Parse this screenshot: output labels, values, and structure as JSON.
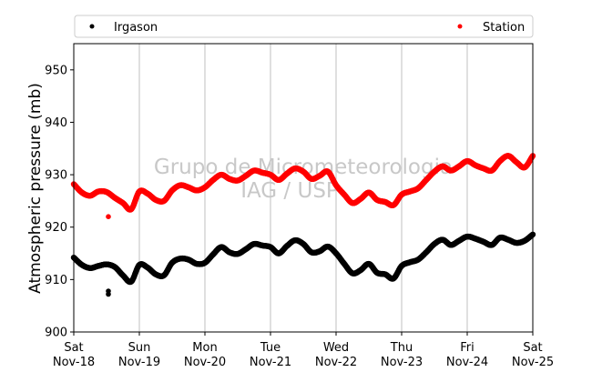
{
  "chart_data": {
    "type": "scatter",
    "ylabel": "Atmospheric pressure (mb)",
    "xlabel": "",
    "ylim": [
      900,
      955
    ],
    "yticks": [
      900,
      910,
      920,
      930,
      940,
      950
    ],
    "xlim": [
      "2017-11-18 00:00",
      "2017-11-25 00:00"
    ],
    "xticks": [
      {
        "day": "Sat",
        "date": "Nov-18"
      },
      {
        "day": "Sun",
        "date": "Nov-19"
      },
      {
        "day": "Mon",
        "date": "Nov-20"
      },
      {
        "day": "Tue",
        "date": "Nov-21"
      },
      {
        "day": "Wed",
        "date": "Nov-22"
      },
      {
        "day": "Thu",
        "date": "Nov-23"
      },
      {
        "day": "Fri",
        "date": "Nov-24"
      },
      {
        "day": "Sat",
        "date": "Nov-25"
      }
    ],
    "grid": "vertical",
    "legend": {
      "placement": "top",
      "entries": [
        "Irgason",
        "Station"
      ]
    },
    "watermark": [
      "Grupo de Micrometeorologia",
      "IAG / USP"
    ],
    "series": [
      {
        "name": "Irgason",
        "color": "#000000",
        "x": [
          "2017-11-18 00:00",
          "2017-11-18 03:00",
          "2017-11-18 06:00",
          "2017-11-18 09:00",
          "2017-11-18 12:00",
          "2017-11-18 15:00",
          "2017-11-18 18:00",
          "2017-11-18 21:00",
          "2017-11-19 00:00",
          "2017-11-19 03:00",
          "2017-11-19 06:00",
          "2017-11-19 09:00",
          "2017-11-19 12:00",
          "2017-11-19 15:00",
          "2017-11-19 18:00",
          "2017-11-19 21:00",
          "2017-11-20 00:00",
          "2017-11-20 03:00",
          "2017-11-20 06:00",
          "2017-11-20 09:00",
          "2017-11-20 12:00",
          "2017-11-20 15:00",
          "2017-11-20 18:00",
          "2017-11-20 21:00",
          "2017-11-21 00:00",
          "2017-11-21 03:00",
          "2017-11-21 06:00",
          "2017-11-21 09:00",
          "2017-11-21 12:00",
          "2017-11-21 15:00",
          "2017-11-21 18:00",
          "2017-11-21 21:00",
          "2017-11-22 00:00",
          "2017-11-22 03:00",
          "2017-11-22 06:00",
          "2017-11-22 09:00",
          "2017-11-22 12:00",
          "2017-11-22 15:00",
          "2017-11-22 18:00",
          "2017-11-22 21:00",
          "2017-11-23 00:00",
          "2017-11-23 03:00",
          "2017-11-23 06:00",
          "2017-11-23 09:00",
          "2017-11-23 12:00",
          "2017-11-23 15:00",
          "2017-11-23 18:00",
          "2017-11-23 21:00",
          "2017-11-24 00:00",
          "2017-11-24 03:00",
          "2017-11-24 06:00",
          "2017-11-24 09:00",
          "2017-11-24 12:00",
          "2017-11-24 15:00",
          "2017-11-24 18:00",
          "2017-11-24 21:00",
          "2017-11-25 00:00"
        ],
        "y": [
          914.2,
          912.8,
          912.2,
          912.6,
          912.9,
          912.4,
          910.8,
          909.6,
          912.8,
          912.3,
          911.0,
          910.8,
          913.2,
          914.0,
          913.8,
          913.0,
          913.2,
          914.8,
          916.2,
          915.2,
          914.9,
          915.8,
          916.8,
          916.5,
          916.2,
          915.0,
          916.4,
          917.5,
          916.8,
          915.2,
          915.4,
          916.3,
          915.0,
          913.0,
          911.2,
          911.8,
          913.0,
          911.3,
          911.0,
          910.2,
          912.6,
          913.3,
          913.8,
          915.2,
          916.8,
          917.6,
          916.6,
          917.4,
          918.2,
          917.8,
          917.2,
          916.6,
          918.0,
          917.6,
          917.0,
          917.4,
          918.6
        ],
        "outliers": [
          {
            "x": "2017-11-18 12:40",
            "y": 907.2
          },
          {
            "x": "2017-11-18 12:40",
            "y": 907.8
          }
        ]
      },
      {
        "name": "Station",
        "color": "#ff0000",
        "x": [
          "2017-11-18 00:00",
          "2017-11-18 03:00",
          "2017-11-18 06:00",
          "2017-11-18 09:00",
          "2017-11-18 12:00",
          "2017-11-18 15:00",
          "2017-11-18 18:00",
          "2017-11-18 21:00",
          "2017-11-19 00:00",
          "2017-11-19 03:00",
          "2017-11-19 06:00",
          "2017-11-19 09:00",
          "2017-11-19 12:00",
          "2017-11-19 15:00",
          "2017-11-19 18:00",
          "2017-11-19 21:00",
          "2017-11-20 00:00",
          "2017-11-20 03:00",
          "2017-11-20 06:00",
          "2017-11-20 09:00",
          "2017-11-20 12:00",
          "2017-11-20 15:00",
          "2017-11-20 18:00",
          "2017-11-20 21:00",
          "2017-11-21 00:00",
          "2017-11-21 03:00",
          "2017-11-21 06:00",
          "2017-11-21 09:00",
          "2017-11-21 12:00",
          "2017-11-21 15:00",
          "2017-11-21 18:00",
          "2017-11-21 21:00",
          "2017-11-22 00:00",
          "2017-11-22 03:00",
          "2017-11-22 06:00",
          "2017-11-22 09:00",
          "2017-11-22 12:00",
          "2017-11-22 15:00",
          "2017-11-22 18:00",
          "2017-11-22 21:00",
          "2017-11-23 00:00",
          "2017-11-23 03:00",
          "2017-11-23 06:00",
          "2017-11-23 09:00",
          "2017-11-23 12:00",
          "2017-11-23 15:00",
          "2017-11-23 18:00",
          "2017-11-23 21:00",
          "2017-11-24 00:00",
          "2017-11-24 03:00",
          "2017-11-24 06:00",
          "2017-11-24 09:00",
          "2017-11-24 12:00",
          "2017-11-24 15:00",
          "2017-11-24 18:00",
          "2017-11-24 21:00",
          "2017-11-25 00:00"
        ],
        "y": [
          928.2,
          926.6,
          926.0,
          926.8,
          926.7,
          925.6,
          924.6,
          923.4,
          926.8,
          926.4,
          925.2,
          925.0,
          927.0,
          928.0,
          927.6,
          927.0,
          927.6,
          929.0,
          930.0,
          929.2,
          928.9,
          929.8,
          930.8,
          930.4,
          930.0,
          929.0,
          930.2,
          931.2,
          930.6,
          929.2,
          929.8,
          930.6,
          928.0,
          926.2,
          924.6,
          925.4,
          926.6,
          925.2,
          924.8,
          924.2,
          926.2,
          926.8,
          927.4,
          929.0,
          930.6,
          931.6,
          930.8,
          931.6,
          932.6,
          931.8,
          931.2,
          930.8,
          932.6,
          933.6,
          932.4,
          931.4,
          933.6
        ],
        "outliers": [
          {
            "x": "2017-11-18 12:40",
            "y": 922.0
          }
        ]
      }
    ]
  }
}
